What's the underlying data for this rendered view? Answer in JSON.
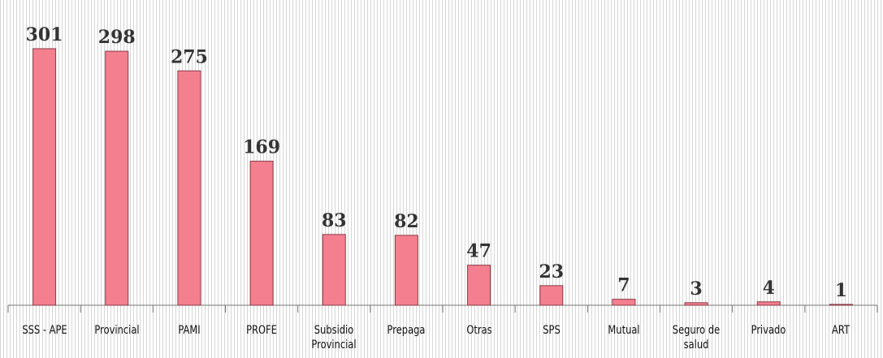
{
  "chart_data": {
    "type": "bar",
    "categories": [
      "SSS - APE",
      "Provincial",
      "PAMI",
      "PROFE",
      "Subsidio Provincial",
      "Prepaga",
      "Otras",
      "SPS",
      "Mutual",
      "Seguro de salud",
      "Privado",
      "ART"
    ],
    "values": [
      301,
      298,
      275,
      169,
      83,
      82,
      47,
      23,
      7,
      3,
      4,
      1
    ],
    "color": "#f47f8f"
  }
}
